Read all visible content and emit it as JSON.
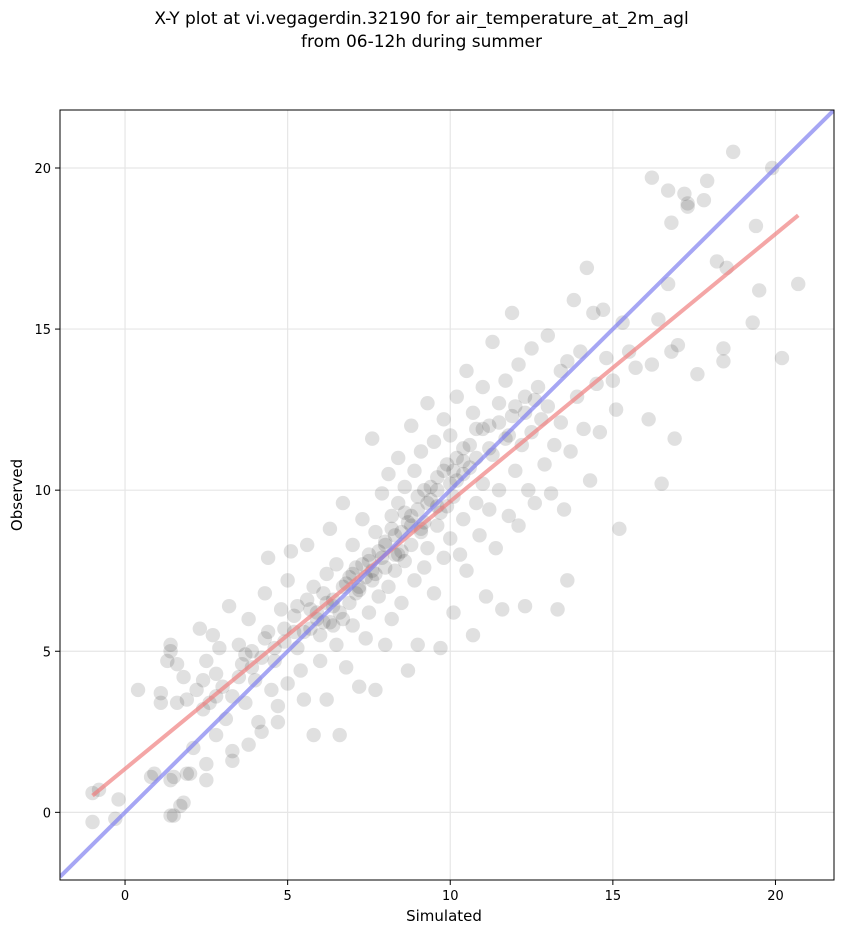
{
  "chart_data": {
    "type": "scatter",
    "title": "X-Y plot at vi.vegagerdin.32190 for air_temperature_at_2m_agl",
    "subtitle": "from 06-12h during summer",
    "xlabel": "Simulated",
    "ylabel": "Observed",
    "xlim": [
      -2.0,
      21.8
    ],
    "ylim": [
      -2.1,
      21.8
    ],
    "xticks": [
      0,
      5,
      10,
      15,
      20
    ],
    "yticks": [
      0,
      5,
      10,
      15,
      20
    ],
    "grid": true,
    "point_color": "#000000",
    "point_alpha": 0.12,
    "points": [
      [
        -1.0,
        -0.3
      ],
      [
        -1.0,
        0.6
      ],
      [
        -0.8,
        0.7
      ],
      [
        -0.3,
        -0.2
      ],
      [
        -0.2,
        0.4
      ],
      [
        0.4,
        3.8
      ],
      [
        0.8,
        1.1
      ],
      [
        0.9,
        1.2
      ],
      [
        1.1,
        3.7
      ],
      [
        1.1,
        3.4
      ],
      [
        1.3,
        4.7
      ],
      [
        1.4,
        5.2
      ],
      [
        1.4,
        5.0
      ],
      [
        1.4,
        1.0
      ],
      [
        1.4,
        -0.1
      ],
      [
        1.5,
        -0.1
      ],
      [
        1.5,
        1.1
      ],
      [
        1.6,
        4.6
      ],
      [
        1.6,
        3.4
      ],
      [
        1.7,
        0.2
      ],
      [
        1.8,
        0.3
      ],
      [
        1.8,
        4.2
      ],
      [
        1.9,
        3.5
      ],
      [
        1.9,
        1.2
      ],
      [
        2.0,
        1.2
      ],
      [
        2.1,
        2.0
      ],
      [
        2.2,
        3.8
      ],
      [
        2.3,
        5.7
      ],
      [
        2.4,
        4.1
      ],
      [
        2.4,
        3.2
      ],
      [
        2.5,
        4.7
      ],
      [
        2.5,
        1.5
      ],
      [
        2.5,
        1.0
      ],
      [
        2.6,
        3.4
      ],
      [
        2.7,
        5.5
      ],
      [
        2.8,
        4.3
      ],
      [
        2.8,
        2.4
      ],
      [
        2.9,
        5.1
      ],
      [
        3.0,
        3.9
      ],
      [
        3.1,
        2.9
      ],
      [
        3.2,
        6.4
      ],
      [
        3.3,
        1.9
      ],
      [
        3.3,
        1.6
      ],
      [
        3.3,
        3.6
      ],
      [
        3.5,
        5.2
      ],
      [
        3.6,
        4.6
      ],
      [
        3.7,
        3.4
      ],
      [
        3.8,
        2.1
      ],
      [
        3.8,
        6.0
      ],
      [
        3.9,
        5.0
      ],
      [
        4.0,
        4.1
      ],
      [
        4.1,
        2.8
      ],
      [
        4.2,
        2.5
      ],
      [
        4.3,
        6.8
      ],
      [
        4.3,
        5.4
      ],
      [
        4.4,
        7.9
      ],
      [
        4.5,
        3.8
      ],
      [
        4.6,
        4.7
      ],
      [
        4.7,
        2.8
      ],
      [
        4.7,
        3.3
      ],
      [
        4.8,
        6.3
      ],
      [
        4.9,
        5.7
      ],
      [
        5.0,
        7.2
      ],
      [
        5.0,
        4.0
      ],
      [
        5.1,
        8.1
      ],
      [
        5.2,
        6.1
      ],
      [
        5.3,
        5.1
      ],
      [
        5.4,
        4.4
      ],
      [
        5.5,
        3.5
      ],
      [
        5.6,
        6.6
      ],
      [
        5.6,
        8.3
      ],
      [
        5.7,
        5.7
      ],
      [
        5.8,
        7.0
      ],
      [
        5.8,
        2.4
      ],
      [
        5.9,
        6.2
      ],
      [
        6.0,
        5.5
      ],
      [
        6.0,
        4.7
      ],
      [
        6.1,
        6.8
      ],
      [
        6.2,
        7.4
      ],
      [
        6.2,
        3.5
      ],
      [
        6.3,
        5.9
      ],
      [
        6.3,
        8.8
      ],
      [
        6.4,
        6.4
      ],
      [
        6.5,
        5.2
      ],
      [
        6.5,
        7.7
      ],
      [
        6.6,
        2.4
      ],
      [
        6.7,
        6.0
      ],
      [
        6.7,
        9.6
      ],
      [
        6.8,
        7.1
      ],
      [
        6.8,
        4.5
      ],
      [
        6.9,
        6.5
      ],
      [
        7.0,
        5.8
      ],
      [
        7.0,
        8.3
      ],
      [
        7.1,
        7.6
      ],
      [
        7.2,
        3.9
      ],
      [
        7.2,
        6.9
      ],
      [
        7.3,
        9.1
      ],
      [
        7.4,
        7.3
      ],
      [
        7.4,
        5.4
      ],
      [
        7.5,
        8.0
      ],
      [
        7.5,
        6.2
      ],
      [
        7.6,
        11.6
      ],
      [
        7.6,
        7.5
      ],
      [
        7.7,
        3.8
      ],
      [
        7.7,
        8.7
      ],
      [
        7.8,
        6.7
      ],
      [
        7.9,
        9.9
      ],
      [
        7.9,
        7.9
      ],
      [
        8.0,
        5.2
      ],
      [
        8.0,
        8.4
      ],
      [
        8.1,
        7.0
      ],
      [
        8.1,
        10.5
      ],
      [
        8.2,
        9.2
      ],
      [
        8.2,
        6.0
      ],
      [
        8.3,
        8.6
      ],
      [
        8.3,
        7.5
      ],
      [
        8.4,
        11.0
      ],
      [
        8.4,
        9.6
      ],
      [
        8.5,
        8.1
      ],
      [
        8.5,
        6.5
      ],
      [
        8.6,
        7.8
      ],
      [
        8.6,
        10.1
      ],
      [
        8.7,
        4.4
      ],
      [
        8.7,
        9.0
      ],
      [
        8.8,
        8.3
      ],
      [
        8.8,
        12.0
      ],
      [
        8.9,
        7.2
      ],
      [
        8.9,
        10.6
      ],
      [
        9.0,
        9.4
      ],
      [
        9.0,
        5.2
      ],
      [
        9.1,
        8.7
      ],
      [
        9.1,
        11.2
      ],
      [
        9.2,
        7.6
      ],
      [
        9.2,
        10.0
      ],
      [
        9.3,
        12.7
      ],
      [
        9.3,
        8.2
      ],
      [
        9.4,
        9.7
      ],
      [
        9.5,
        6.8
      ],
      [
        9.5,
        11.5
      ],
      [
        9.6,
        8.9
      ],
      [
        9.6,
        10.4
      ],
      [
        9.7,
        5.1
      ],
      [
        9.7,
        9.3
      ],
      [
        9.8,
        12.2
      ],
      [
        9.8,
        7.9
      ],
      [
        9.9,
        10.8
      ],
      [
        10.0,
        8.5
      ],
      [
        10.0,
        11.7
      ],
      [
        10.1,
        9.8
      ],
      [
        10.1,
        6.2
      ],
      [
        10.2,
        12.9
      ],
      [
        10.2,
        10.3
      ],
      [
        10.3,
        8.0
      ],
      [
        10.4,
        11.3
      ],
      [
        10.4,
        9.1
      ],
      [
        10.5,
        13.7
      ],
      [
        10.5,
        7.5
      ],
      [
        10.6,
        10.7
      ],
      [
        10.7,
        12.4
      ],
      [
        10.7,
        5.5
      ],
      [
        10.8,
        9.6
      ],
      [
        10.8,
        11.9
      ],
      [
        10.9,
        8.6
      ],
      [
        11.0,
        13.2
      ],
      [
        11.0,
        10.2
      ],
      [
        11.1,
        6.7
      ],
      [
        11.2,
        12.0
      ],
      [
        11.2,
        9.4
      ],
      [
        11.3,
        14.6
      ],
      [
        11.3,
        11.1
      ],
      [
        11.4,
        8.2
      ],
      [
        11.5,
        12.7
      ],
      [
        11.5,
        10.0
      ],
      [
        11.6,
        6.3
      ],
      [
        11.7,
        13.4
      ],
      [
        11.7,
        11.6
      ],
      [
        11.8,
        9.2
      ],
      [
        11.9,
        15.5
      ],
      [
        11.9,
        12.3
      ],
      [
        12.0,
        10.6
      ],
      [
        12.1,
        8.9
      ],
      [
        12.1,
        13.9
      ],
      [
        12.2,
        11.4
      ],
      [
        12.3,
        6.4
      ],
      [
        12.3,
        12.9
      ],
      [
        12.4,
        10.0
      ],
      [
        12.5,
        14.4
      ],
      [
        12.5,
        11.8
      ],
      [
        12.6,
        9.6
      ],
      [
        12.7,
        13.2
      ],
      [
        12.8,
        12.2
      ],
      [
        12.9,
        10.8
      ],
      [
        13.0,
        14.8
      ],
      [
        13.0,
        12.6
      ],
      [
        13.1,
        9.9
      ],
      [
        13.2,
        11.4
      ],
      [
        13.3,
        6.3
      ],
      [
        13.4,
        13.7
      ],
      [
        13.4,
        12.1
      ],
      [
        13.5,
        9.4
      ],
      [
        13.6,
        7.2
      ],
      [
        13.6,
        14.0
      ],
      [
        13.7,
        11.2
      ],
      [
        13.8,
        15.9
      ],
      [
        13.9,
        12.9
      ],
      [
        14.0,
        14.3
      ],
      [
        14.1,
        11.9
      ],
      [
        14.2,
        16.9
      ],
      [
        14.3,
        10.3
      ],
      [
        14.4,
        15.5
      ],
      [
        14.5,
        13.3
      ],
      [
        14.6,
        11.8
      ],
      [
        14.7,
        15.6
      ],
      [
        14.8,
        14.1
      ],
      [
        15.0,
        13.4
      ],
      [
        15.1,
        12.5
      ],
      [
        15.2,
        8.8
      ],
      [
        15.3,
        15.2
      ],
      [
        15.5,
        14.3
      ],
      [
        15.7,
        13.8
      ],
      [
        16.1,
        12.2
      ],
      [
        16.2,
        19.7
      ],
      [
        16.2,
        13.9
      ],
      [
        16.4,
        15.3
      ],
      [
        16.5,
        10.2
      ],
      [
        16.7,
        19.3
      ],
      [
        16.7,
        16.4
      ],
      [
        16.8,
        18.3
      ],
      [
        16.8,
        14.3
      ],
      [
        16.9,
        11.6
      ],
      [
        17.0,
        14.5
      ],
      [
        17.2,
        19.2
      ],
      [
        17.3,
        18.8
      ],
      [
        17.3,
        18.9
      ],
      [
        17.6,
        13.6
      ],
      [
        17.8,
        19.0
      ],
      [
        17.9,
        19.6
      ],
      [
        18.2,
        17.1
      ],
      [
        18.4,
        14.0
      ],
      [
        18.4,
        14.4
      ],
      [
        18.5,
        16.9
      ],
      [
        18.7,
        20.5
      ],
      [
        19.3,
        15.2
      ],
      [
        19.4,
        18.2
      ],
      [
        19.5,
        16.2
      ],
      [
        19.9,
        20.0
      ],
      [
        20.2,
        14.1
      ],
      [
        20.7,
        16.4
      ],
      [
        6.1,
        5.9
      ],
      [
        6.4,
        6.6
      ],
      [
        6.6,
        6.2
      ],
      [
        6.9,
        7.3
      ],
      [
        7.1,
        6.8
      ],
      [
        7.3,
        7.7
      ],
      [
        7.6,
        7.2
      ],
      [
        7.8,
        8.1
      ],
      [
        8.0,
        7.6
      ],
      [
        8.2,
        8.8
      ],
      [
        8.4,
        8.0
      ],
      [
        8.6,
        9.3
      ],
      [
        8.8,
        8.9
      ],
      [
        9.0,
        9.8
      ],
      [
        9.2,
        9.0
      ],
      [
        9.4,
        10.1
      ],
      [
        9.6,
        9.5
      ],
      [
        9.8,
        10.6
      ],
      [
        10.0,
        10.2
      ],
      [
        10.2,
        11.0
      ],
      [
        10.4,
        10.5
      ],
      [
        10.6,
        11.4
      ],
      [
        10.8,
        11.0
      ],
      [
        11.0,
        11.9
      ],
      [
        11.2,
        11.3
      ],
      [
        11.5,
        12.1
      ],
      [
        11.8,
        11.7
      ],
      [
        12.0,
        12.6
      ],
      [
        12.3,
        12.4
      ],
      [
        12.6,
        12.8
      ],
      [
        5.5,
        5.6
      ],
      [
        5.7,
        6.3
      ],
      [
        5.9,
        6.0
      ],
      [
        6.2,
        6.5
      ],
      [
        6.4,
        5.8
      ],
      [
        6.7,
        7.0
      ],
      [
        7.0,
        7.4
      ],
      [
        7.2,
        7.0
      ],
      [
        7.5,
        7.8
      ],
      [
        7.7,
        7.4
      ],
      [
        8.0,
        8.3
      ],
      [
        8.3,
        8.0
      ],
      [
        8.5,
        8.7
      ],
      [
        8.8,
        9.2
      ],
      [
        9.1,
        8.8
      ],
      [
        9.3,
        9.6
      ],
      [
        9.6,
        10.0
      ],
      [
        9.9,
        9.5
      ],
      [
        10.1,
        10.6
      ],
      [
        10.4,
        10.9
      ],
      [
        3.5,
        4.2
      ],
      [
        3.9,
        4.5
      ],
      [
        4.2,
        4.8
      ],
      [
        4.6,
        5.1
      ],
      [
        4.9,
        5.3
      ],
      [
        5.2,
        5.6
      ],
      [
        3.7,
        4.9
      ],
      [
        4.4,
        5.6
      ],
      [
        5.3,
        6.4
      ],
      [
        2.8,
        3.6
      ]
    ],
    "series": [
      {
        "type": "line",
        "color": "#f08080",
        "slope": 0.83,
        "intercept": 1.35,
        "x_range": [
          -1.0,
          20.7
        ]
      },
      {
        "type": "line",
        "color": "#8080f0",
        "slope": 1.0,
        "intercept": 0.0,
        "x_range": [
          -2.0,
          21.8
        ]
      }
    ]
  }
}
